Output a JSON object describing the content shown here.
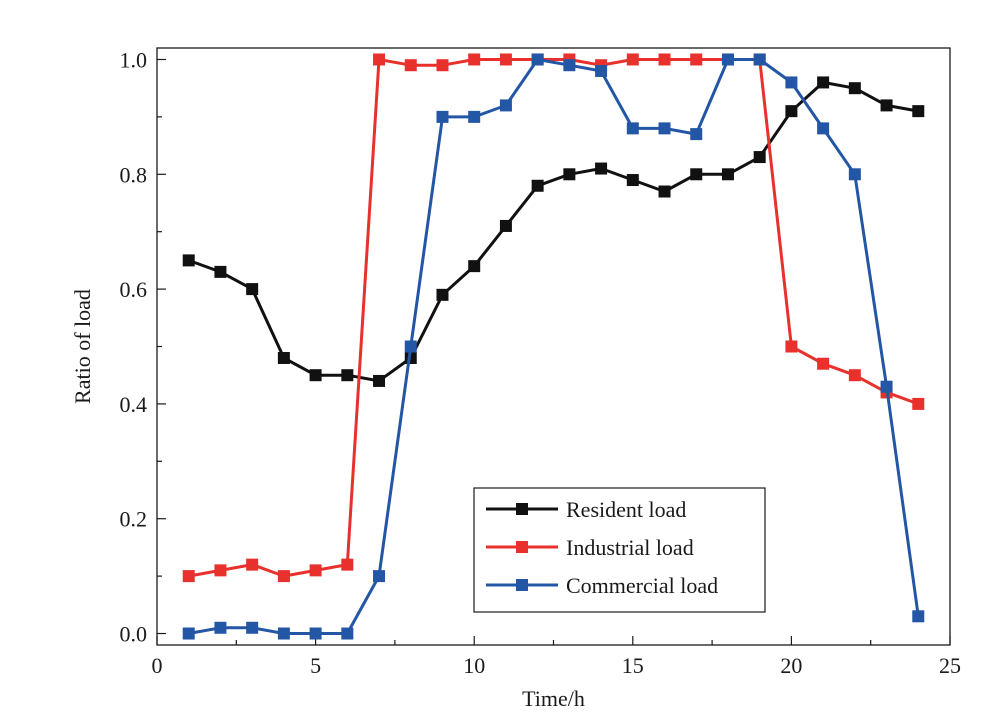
{
  "chart_data": {
    "type": "line",
    "title": "",
    "xlabel": "Time/h",
    "ylabel": "Ratio of load",
    "xlim": [
      0,
      25
    ],
    "ylim": [
      -0.02,
      1.02
    ],
    "xticks": [
      0,
      5,
      10,
      15,
      20,
      25
    ],
    "yticks": [
      0.0,
      0.2,
      0.4,
      0.6,
      0.8,
      1.0
    ],
    "ytick_labels": [
      "0.0",
      "0.2",
      "0.4",
      "0.6",
      "0.8",
      "1.0"
    ],
    "grid": false,
    "legend_position": "lower-right",
    "x": [
      1,
      2,
      3,
      4,
      5,
      6,
      7,
      8,
      9,
      10,
      11,
      12,
      13,
      14,
      15,
      16,
      17,
      18,
      19,
      20,
      21,
      22,
      23,
      24
    ],
    "series": [
      {
        "name": "Resident load",
        "color": "#111111",
        "marker": "square",
        "values": [
          0.65,
          0.63,
          0.6,
          0.48,
          0.45,
          0.45,
          0.44,
          0.48,
          0.59,
          0.64,
          0.71,
          0.78,
          0.8,
          0.81,
          0.79,
          0.77,
          0.8,
          0.8,
          0.83,
          0.91,
          0.96,
          0.95,
          0.92,
          0.91
        ]
      },
      {
        "name": "Industrial load",
        "color": "#e8312c",
        "marker": "square",
        "values": [
          0.1,
          0.11,
          0.12,
          0.1,
          0.11,
          0.12,
          1.0,
          0.99,
          0.99,
          1.0,
          1.0,
          1.0,
          1.0,
          0.99,
          1.0,
          1.0,
          1.0,
          1.0,
          1.0,
          0.5,
          0.47,
          0.45,
          0.42,
          0.4
        ]
      },
      {
        "name": "Commercial load",
        "color": "#2456a6",
        "marker": "square",
        "values": [
          0.0,
          0.01,
          0.01,
          0.0,
          0.0,
          0.0,
          0.1,
          0.5,
          0.9,
          0.9,
          0.92,
          1.0,
          0.99,
          0.98,
          0.88,
          0.88,
          0.87,
          1.0,
          1.0,
          0.96,
          0.88,
          0.8,
          0.43,
          0.03
        ]
      }
    ]
  }
}
